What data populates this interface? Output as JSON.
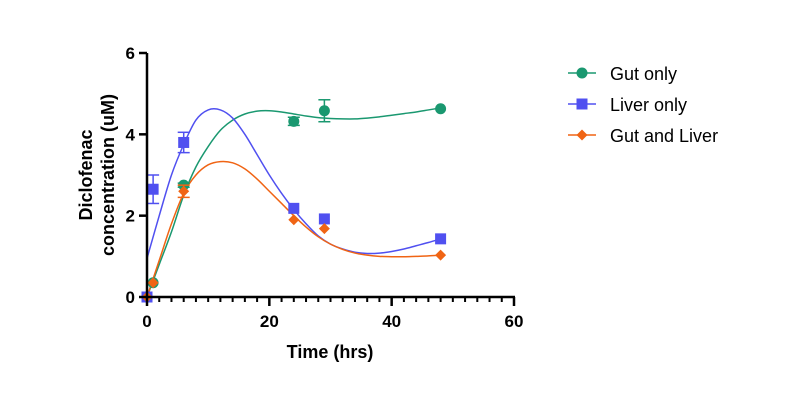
{
  "chart_data": {
    "type": "scatter",
    "title": "",
    "xlabel": "Time (hrs)",
    "ylabel_lines": [
      "Diclofenac",
      "concentration (uM)"
    ],
    "xlim": [
      0,
      60
    ],
    "ylim": [
      0,
      6
    ],
    "x_ticks": [
      0,
      20,
      40,
      60
    ],
    "x_tick_labels": [
      "0",
      "20",
      "40",
      "60"
    ],
    "x_minor_step": 2,
    "y_ticks": [
      0,
      2,
      4,
      6
    ],
    "y_tick_labels": [
      "0",
      "2",
      "4",
      "6"
    ],
    "grid": false,
    "legend_position": "right",
    "series": [
      {
        "name": "Gut only",
        "color": "#1a9870",
        "marker": "circle",
        "points": [
          {
            "x": 0,
            "y": 0,
            "err": 0
          },
          {
            "x": 1,
            "y": 0.35,
            "err": 0
          },
          {
            "x": 6,
            "y": 2.75,
            "err": 0.05
          },
          {
            "x": 24,
            "y": 4.32,
            "err": 0.1
          },
          {
            "x": 29,
            "y": 4.58,
            "err": 0.27
          },
          {
            "x": 48,
            "y": 4.63,
            "err": 0
          }
        ],
        "fit": [
          [
            0,
            0
          ],
          [
            2,
            0.8
          ],
          [
            4,
            1.6
          ],
          [
            6,
            2.5
          ],
          [
            8,
            3.2
          ],
          [
            10,
            3.7
          ],
          [
            12,
            4.1
          ],
          [
            14,
            4.35
          ],
          [
            16,
            4.5
          ],
          [
            18,
            4.57
          ],
          [
            20,
            4.58
          ],
          [
            22,
            4.55
          ],
          [
            24,
            4.5
          ],
          [
            26,
            4.45
          ],
          [
            28,
            4.41
          ],
          [
            30,
            4.39
          ],
          [
            32,
            4.38
          ],
          [
            34,
            4.38
          ],
          [
            36,
            4.4
          ],
          [
            38,
            4.43
          ],
          [
            40,
            4.47
          ],
          [
            42,
            4.51
          ],
          [
            44,
            4.55
          ],
          [
            46,
            4.6
          ],
          [
            48,
            4.65
          ]
        ]
      },
      {
        "name": "Liver only",
        "color": "#5050f0",
        "marker": "square",
        "points": [
          {
            "x": 0,
            "y": 0,
            "err": 0
          },
          {
            "x": 1,
            "y": 2.65,
            "err": 0.35
          },
          {
            "x": 6,
            "y": 3.8,
            "err": 0.25
          },
          {
            "x": 24,
            "y": 2.18,
            "err": 0
          },
          {
            "x": 29,
            "y": 1.92,
            "err": 0
          },
          {
            "x": 48,
            "y": 1.43,
            "err": 0
          }
        ],
        "fit": [
          [
            0,
            0.95
          ],
          [
            2,
            2.0
          ],
          [
            4,
            3.0
          ],
          [
            6,
            3.75
          ],
          [
            8,
            4.35
          ],
          [
            10,
            4.6
          ],
          [
            12,
            4.6
          ],
          [
            14,
            4.4
          ],
          [
            16,
            4.0
          ],
          [
            18,
            3.5
          ],
          [
            20,
            3.0
          ],
          [
            22,
            2.55
          ],
          [
            24,
            2.15
          ],
          [
            26,
            1.8
          ],
          [
            28,
            1.5
          ],
          [
            30,
            1.3
          ],
          [
            32,
            1.18
          ],
          [
            34,
            1.1
          ],
          [
            36,
            1.07
          ],
          [
            38,
            1.08
          ],
          [
            40,
            1.12
          ],
          [
            42,
            1.18
          ],
          [
            44,
            1.26
          ],
          [
            46,
            1.34
          ],
          [
            48,
            1.43
          ]
        ]
      },
      {
        "name": "Gut and Liver",
        "color": "#f06414",
        "marker": "diamond",
        "points": [
          {
            "x": 0,
            "y": 0,
            "err": 0
          },
          {
            "x": 1,
            "y": 0.35,
            "err": 0
          },
          {
            "x": 6,
            "y": 2.6,
            "err": 0.15
          },
          {
            "x": 24,
            "y": 1.9,
            "err": 0
          },
          {
            "x": 29,
            "y": 1.68,
            "err": 0
          },
          {
            "x": 48,
            "y": 1.03,
            "err": 0
          }
        ],
        "fit": [
          [
            0,
            0
          ],
          [
            2,
            0.9
          ],
          [
            4,
            1.8
          ],
          [
            6,
            2.55
          ],
          [
            8,
            3.0
          ],
          [
            10,
            3.25
          ],
          [
            12,
            3.33
          ],
          [
            14,
            3.3
          ],
          [
            16,
            3.15
          ],
          [
            18,
            2.9
          ],
          [
            20,
            2.6
          ],
          [
            22,
            2.3
          ],
          [
            24,
            2.0
          ],
          [
            26,
            1.72
          ],
          [
            28,
            1.48
          ],
          [
            30,
            1.3
          ],
          [
            32,
            1.17
          ],
          [
            34,
            1.08
          ],
          [
            36,
            1.03
          ],
          [
            38,
            1.0
          ],
          [
            40,
            0.99
          ],
          [
            42,
            0.99
          ],
          [
            44,
            1.0
          ],
          [
            46,
            1.01
          ],
          [
            48,
            1.03
          ]
        ]
      }
    ]
  }
}
